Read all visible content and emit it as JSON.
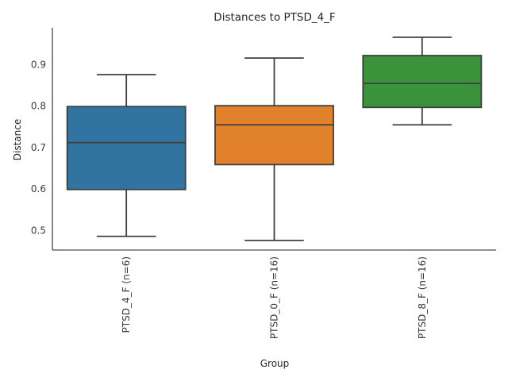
{
  "chart_data": {
    "type": "box",
    "title": "Distances to PTSD_4_F",
    "xlabel": "Group",
    "ylabel": "Distance",
    "ylim": [
      0.452,
      0.988
    ],
    "yticks": [
      0.5,
      0.6,
      0.7,
      0.8,
      0.9
    ],
    "ytick_labels": [
      "0.5",
      "0.6",
      "0.7",
      "0.8",
      "0.9"
    ],
    "grid": false,
    "categories": [
      "PTSD_4_F (n=6)",
      "PTSD_0_F (n=16)",
      "PTSD_8_F (n=16)"
    ],
    "series": [
      {
        "name": "PTSD_4_F (n=6)",
        "color": "#3274a1",
        "whisker_low": 0.485,
        "q1": 0.598,
        "median": 0.711,
        "q3": 0.798,
        "whisker_high": 0.875
      },
      {
        "name": "PTSD_0_F (n=16)",
        "color": "#e1812c",
        "whisker_low": 0.475,
        "q1": 0.658,
        "median": 0.754,
        "q3": 0.8,
        "whisker_high": 0.915
      },
      {
        "name": "PTSD_8_F (n=16)",
        "color": "#3a923a",
        "whisker_low": 0.754,
        "q1": 0.796,
        "median": 0.854,
        "q3": 0.921,
        "whisker_high": 0.965
      }
    ]
  }
}
